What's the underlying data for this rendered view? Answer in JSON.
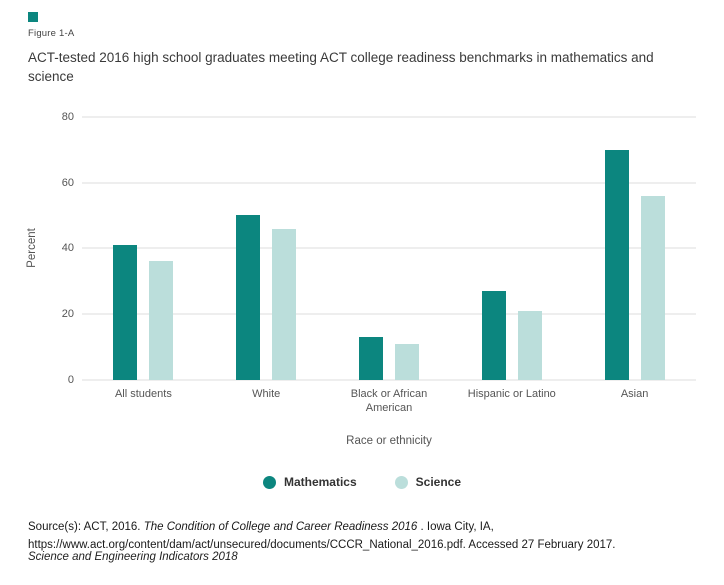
{
  "figure": {
    "label": "Figure 1-A",
    "marker_color": "#0c867f",
    "title": "ACT-tested 2016 high school graduates meeting ACT college readiness benchmarks in mathematics and science"
  },
  "chart_data": {
    "type": "bar",
    "categories": [
      "All students",
      "White",
      "Black or African American",
      "Hispanic or Latino",
      "Asian"
    ],
    "series": [
      {
        "name": "Mathematics",
        "color": "#0c867f",
        "values": [
          41,
          50,
          13,
          27,
          70
        ]
      },
      {
        "name": "Science",
        "color": "#bbdedb",
        "values": [
          36,
          46,
          11,
          21,
          56
        ]
      }
    ],
    "xlabel": "Race or ethnicity",
    "ylabel": "Percent",
    "ylim": [
      0,
      80
    ],
    "yticks": [
      0,
      20,
      40,
      60,
      80
    ],
    "grid": true,
    "legend_position": "bottom",
    "gridline_color": "#dddddd"
  },
  "source": {
    "prefix": "Source(s): ACT, 2016. ",
    "italic": "The Condition of College and Career Readiness 2016",
    "suffix": " . Iowa City, IA, https://www.act.org/content/dam/act/unsecured/documents/CCCR_National_2016.pdf. Accessed 27 February 2017."
  },
  "footer": {
    "text": "Science and Engineering Indicators 2018"
  }
}
